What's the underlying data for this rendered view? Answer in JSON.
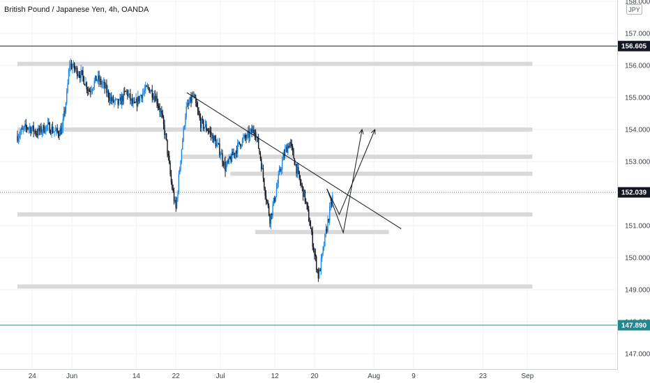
{
  "chart_data": {
    "type": "candlestick",
    "title": "British Pound / Japanese Yen, 4h, OANDA",
    "currency": "JPY",
    "ylim": [
      146.9,
      158.3
    ],
    "y_ticks": [
      "158.000",
      "157.000",
      "156.000",
      "155.000",
      "154.000",
      "153.000",
      "152.000",
      "151.000",
      "150.000",
      "149.000",
      "148.000",
      "147.000"
    ],
    "x_ticks": [
      {
        "label": "24",
        "day": -7
      },
      {
        "label": "Jun",
        "day": 1
      },
      {
        "label": "14",
        "day": 14
      },
      {
        "label": "22",
        "day": 22
      },
      {
        "label": "Jul",
        "day": 31
      },
      {
        "label": "12",
        "day": 42
      },
      {
        "label": "20",
        "day": 50
      },
      {
        "label": "Aug",
        "day": 62
      },
      {
        "label": "9",
        "day": 70
      },
      {
        "label": "23",
        "day": 84
      },
      {
        "label": "Sep",
        "day": 93
      }
    ],
    "price_labels": [
      {
        "value": 156.605,
        "text": "156.605",
        "bg": "#131722",
        "fg": "#ffffff"
      },
      {
        "value": 152.039,
        "text": "152.039",
        "bg": "#131722",
        "fg": "#ffffff"
      },
      {
        "value": 147.89,
        "text": "147.890",
        "bg": "#22888f",
        "fg": "#ffffff"
      }
    ],
    "reference_lines": [
      {
        "value": 156.605,
        "color": "#131722",
        "style": "solid"
      },
      {
        "value": 152.039,
        "color": "#787b86",
        "style": "dotted"
      },
      {
        "value": 147.89,
        "color": "#22888f",
        "style": "solid"
      }
    ],
    "zones": [
      {
        "value": 156.05,
        "from_day": -10,
        "to_day": 94
      },
      {
        "value": 154.0,
        "from_day": -10,
        "to_day": 94
      },
      {
        "value": 153.15,
        "from_day": 23,
        "to_day": 94
      },
      {
        "value": 152.62,
        "from_day": 33,
        "to_day": 94
      },
      {
        "value": 151.35,
        "from_day": -10,
        "to_day": 94
      },
      {
        "value": 150.8,
        "from_day": 38,
        "to_day": 65
      },
      {
        "value": 149.1,
        "from_day": -10,
        "to_day": 94
      }
    ],
    "trendline": {
      "from": {
        "day": 24.2,
        "value": 155.15
      },
      "to": {
        "day": 67.5,
        "value": 150.9
      }
    },
    "projection_paths": [
      [
        {
          "day": 52.5,
          "value": 152.15
        },
        {
          "day": 55.8,
          "value": 150.78
        },
        {
          "day": 59.6,
          "value": 154.0
        }
      ],
      [
        {
          "day": 52.5,
          "value": 152.15
        },
        {
          "day": 55.0,
          "value": 151.35
        },
        {
          "day": 62.2,
          "value": 154.0
        }
      ]
    ],
    "close_path": [
      [
        -10,
        153.8
      ],
      [
        -8,
        154.1
      ],
      [
        -6,
        153.9
      ],
      [
        -4,
        154.1
      ],
      [
        -2,
        153.9
      ],
      [
        -1,
        154.0
      ],
      [
        0,
        155.1
      ],
      [
        0.5,
        156.05
      ],
      [
        1.5,
        155.9
      ],
      [
        3,
        155.7
      ],
      [
        4.5,
        155.2
      ],
      [
        6,
        155.6
      ],
      [
        7.5,
        155.35
      ],
      [
        9,
        154.9
      ],
      [
        10.5,
        154.8
      ],
      [
        12,
        155.2
      ],
      [
        13.5,
        154.7
      ],
      [
        15,
        155.1
      ],
      [
        16.5,
        155.3
      ],
      [
        18,
        155.0
      ],
      [
        19,
        154.5
      ],
      [
        20,
        153.7
      ],
      [
        21,
        152.4
      ],
      [
        22,
        151.5
      ],
      [
        23,
        153.2
      ],
      [
        24,
        154.6
      ],
      [
        25.5,
        155.05
      ],
      [
        27,
        154.2
      ],
      [
        28.5,
        154.0
      ],
      [
        30,
        153.6
      ],
      [
        31,
        153.3
      ],
      [
        32,
        152.8
      ],
      [
        33.5,
        153.2
      ],
      [
        35,
        153.6
      ],
      [
        36.5,
        153.8
      ],
      [
        38,
        154.0
      ],
      [
        39,
        153.2
      ],
      [
        40,
        152.1
      ],
      [
        41,
        151.2
      ],
      [
        42,
        151.9
      ],
      [
        43,
        152.7
      ],
      [
        44,
        153.3
      ],
      [
        45,
        153.6
      ],
      [
        46,
        153.0
      ],
      [
        47,
        152.4
      ],
      [
        48,
        151.9
      ],
      [
        49,
        151.1
      ],
      [
        50,
        150.1
      ],
      [
        50.8,
        149.4
      ],
      [
        51.4,
        149.9
      ],
      [
        52.2,
        150.7
      ],
      [
        53.1,
        151.5
      ],
      [
        53.8,
        152.0
      ]
    ]
  }
}
